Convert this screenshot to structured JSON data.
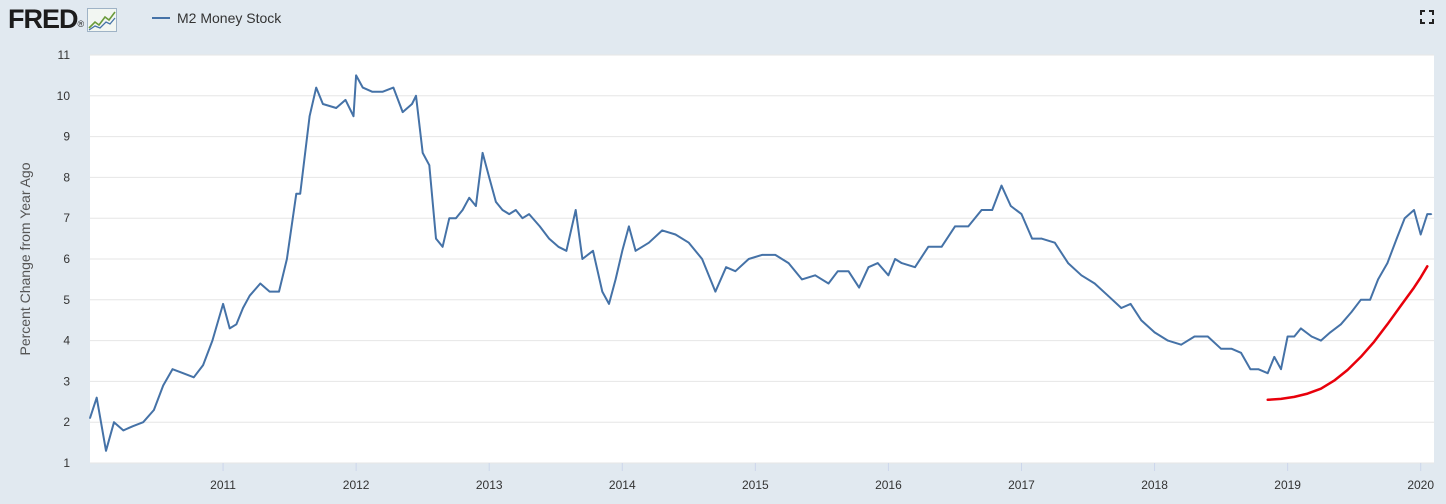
{
  "brand": {
    "logo_text": "FRED",
    "logo_mark": "®"
  },
  "icons": {
    "logo_graph": "line-graph-icon",
    "expand": "expand-icon"
  },
  "colors": {
    "series": "#4572a7",
    "annotation": "#e8000b",
    "background": "#e1e9f0",
    "plot_bg": "#ffffff",
    "grid": "#e6e6e6"
  },
  "chart_data": {
    "type": "line",
    "ylabel": "Percent Change from Year Ago",
    "ylim": [
      1,
      11
    ],
    "yticks": [
      "1",
      "2",
      "3",
      "4",
      "5",
      "6",
      "7",
      "8",
      "9",
      "10",
      "11"
    ],
    "xlim": [
      2010.0,
      2020.1
    ],
    "xticks": [
      {
        "label": "2011",
        "x": 2011
      },
      {
        "label": "2012",
        "x": 2012
      },
      {
        "label": "2013",
        "x": 2013
      },
      {
        "label": "2014",
        "x": 2014
      },
      {
        "label": "2015",
        "x": 2015
      },
      {
        "label": "2016",
        "x": 2016
      },
      {
        "label": "2017",
        "x": 2017
      },
      {
        "label": "2018",
        "x": 2018
      },
      {
        "label": "2019",
        "x": 2019
      },
      {
        "label": "2020",
        "x": 2020
      }
    ],
    "grid": true,
    "series": [
      {
        "name": "M2 Money Stock",
        "x": [
          2010.0,
          2010.05,
          2010.12,
          2010.18,
          2010.25,
          2010.32,
          2010.4,
          2010.48,
          2010.55,
          2010.62,
          2010.7,
          2010.78,
          2010.85,
          2010.92,
          2011.0,
          2011.05,
          2011.1,
          2011.15,
          2011.2,
          2011.28,
          2011.35,
          2011.42,
          2011.48,
          2011.55,
          2011.58,
          2011.65,
          2011.7,
          2011.75,
          2011.85,
          2011.92,
          2011.98,
          2012.0,
          2012.05,
          2012.12,
          2012.2,
          2012.28,
          2012.35,
          2012.42,
          2012.45,
          2012.5,
          2012.55,
          2012.6,
          2012.65,
          2012.7,
          2012.75,
          2012.8,
          2012.85,
          2012.9,
          2012.95,
          2013.0,
          2013.05,
          2013.1,
          2013.15,
          2013.2,
          2013.25,
          2013.3,
          2013.38,
          2013.45,
          2013.52,
          2013.58,
          2013.65,
          2013.7,
          2013.78,
          2013.85,
          2013.9,
          2013.95,
          2014.0,
          2014.05,
          2014.1,
          2014.15,
          2014.2,
          2014.3,
          2014.4,
          2014.5,
          2014.6,
          2014.7,
          2014.78,
          2014.85,
          2014.95,
          2015.05,
          2015.15,
          2015.25,
          2015.35,
          2015.45,
          2015.55,
          2015.62,
          2015.7,
          2015.78,
          2015.85,
          2015.92,
          2016.0,
          2016.05,
          2016.1,
          2016.2,
          2016.3,
          2016.4,
          2016.5,
          2016.6,
          2016.7,
          2016.78,
          2016.85,
          2016.92,
          2017.0,
          2017.08,
          2017.15,
          2017.25,
          2017.35,
          2017.45,
          2017.55,
          2017.65,
          2017.75,
          2017.82,
          2017.9,
          2018.0,
          2018.1,
          2018.2,
          2018.3,
          2018.4,
          2018.5,
          2018.58,
          2018.65,
          2018.72,
          2018.78,
          2018.85,
          2018.9,
          2018.95,
          2019.0,
          2019.05,
          2019.1,
          2019.18,
          2019.25,
          2019.32,
          2019.4,
          2019.48,
          2019.55,
          2019.62,
          2019.68,
          2019.75,
          2019.82,
          2019.88,
          2019.95,
          2020.0,
          2020.05,
          2020.08
        ],
        "values": [
          2.1,
          2.6,
          1.3,
          2.0,
          1.8,
          1.9,
          2.0,
          2.3,
          2.9,
          3.3,
          3.2,
          3.1,
          3.4,
          4.0,
          4.9,
          4.3,
          4.4,
          4.8,
          5.1,
          5.4,
          5.2,
          5.2,
          6.0,
          7.6,
          7.6,
          9.5,
          10.2,
          9.8,
          9.7,
          9.9,
          9.5,
          10.5,
          10.2,
          10.1,
          10.1,
          10.2,
          9.6,
          9.8,
          10.0,
          8.6,
          8.3,
          6.5,
          6.3,
          7.0,
          7.0,
          7.2,
          7.5,
          7.3,
          8.6,
          8.0,
          7.4,
          7.2,
          7.1,
          7.2,
          7.0,
          7.1,
          6.8,
          6.5,
          6.3,
          6.2,
          7.2,
          6.0,
          6.2,
          5.2,
          4.9,
          5.5,
          6.2,
          6.8,
          6.2,
          6.3,
          6.4,
          6.7,
          6.6,
          6.4,
          6.0,
          5.2,
          5.8,
          5.7,
          6.0,
          6.1,
          6.1,
          5.9,
          5.5,
          5.6,
          5.4,
          5.7,
          5.7,
          5.3,
          5.8,
          5.9,
          5.6,
          6.0,
          5.9,
          5.8,
          6.3,
          6.3,
          6.8,
          6.8,
          7.2,
          7.2,
          7.8,
          7.3,
          7.1,
          6.5,
          6.5,
          6.4,
          5.9,
          5.6,
          5.4,
          5.1,
          4.8,
          4.9,
          4.5,
          4.2,
          4.0,
          3.9,
          4.1,
          4.1,
          3.8,
          3.8,
          3.7,
          3.3,
          3.3,
          3.2,
          3.6,
          3.3,
          4.1,
          4.1,
          4.3,
          4.1,
          4.0,
          4.2,
          4.4,
          4.7,
          5.0,
          5.0,
          5.5,
          5.9,
          6.5,
          7.0,
          7.2,
          6.6,
          7.1,
          7.1
        ]
      }
    ],
    "annotation_curve": {
      "x": [
        2018.85,
        2018.95,
        2019.05,
        2019.15,
        2019.25,
        2019.35,
        2019.45,
        2019.55,
        2019.65,
        2019.75,
        2019.85,
        2019.95,
        2020.0,
        2020.05
      ],
      "values": [
        2.55,
        2.57,
        2.62,
        2.7,
        2.82,
        3.02,
        3.28,
        3.6,
        3.97,
        4.4,
        4.85,
        5.3,
        5.55,
        5.82
      ]
    }
  }
}
